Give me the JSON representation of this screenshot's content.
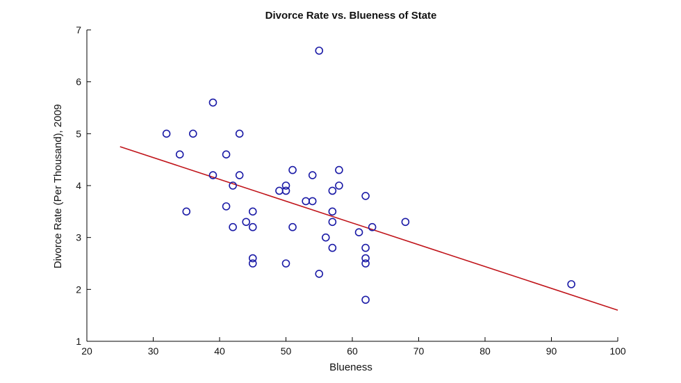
{
  "chart_data": {
    "type": "scatter",
    "title": "Divorce Rate vs. Blueness of State",
    "xlabel": "Blueness",
    "ylabel": "Divorce Rate (Per Thousand), 2009",
    "xlim": [
      20,
      100
    ],
    "ylim": [
      1,
      7
    ],
    "xticks": [
      "20",
      "30",
      "40",
      "50",
      "60",
      "70",
      "80",
      "90",
      "100"
    ],
    "yticks": [
      "1",
      "2",
      "3",
      "4",
      "5",
      "6",
      "7"
    ],
    "grid": false,
    "colors": {
      "points": "#1a1aa6",
      "fit_line": "#c0141a",
      "axis": "#000000"
    },
    "points": [
      [
        55,
        6.6
      ],
      [
        39,
        5.6
      ],
      [
        32,
        5.0
      ],
      [
        36,
        5.0
      ],
      [
        43,
        5.0
      ],
      [
        34,
        4.6
      ],
      [
        41,
        4.6
      ],
      [
        51,
        4.3
      ],
      [
        54,
        4.2
      ],
      [
        58,
        4.3
      ],
      [
        39,
        4.2
      ],
      [
        43,
        4.2
      ],
      [
        42,
        4.0
      ],
      [
        50,
        4.0
      ],
      [
        58,
        4.0
      ],
      [
        49,
        3.9
      ],
      [
        50,
        3.9
      ],
      [
        57,
        3.9
      ],
      [
        62,
        3.8
      ],
      [
        53,
        3.7
      ],
      [
        54,
        3.7
      ],
      [
        35,
        3.5
      ],
      [
        41,
        3.6
      ],
      [
        45,
        3.5
      ],
      [
        57,
        3.5
      ],
      [
        44,
        3.3
      ],
      [
        57,
        3.3
      ],
      [
        68,
        3.3
      ],
      [
        42,
        3.2
      ],
      [
        45,
        3.2
      ],
      [
        51,
        3.2
      ],
      [
        63,
        3.2
      ],
      [
        61,
        3.1
      ],
      [
        56,
        3.0
      ],
      [
        57,
        2.8
      ],
      [
        62,
        2.8
      ],
      [
        45,
        2.6
      ],
      [
        62,
        2.6
      ],
      [
        45,
        2.5
      ],
      [
        50,
        2.5
      ],
      [
        62,
        2.5
      ],
      [
        55,
        2.3
      ],
      [
        93,
        2.1
      ],
      [
        62,
        1.8
      ]
    ],
    "fit_line": {
      "x": [
        25,
        100
      ],
      "y": [
        4.75,
        1.6
      ]
    }
  }
}
